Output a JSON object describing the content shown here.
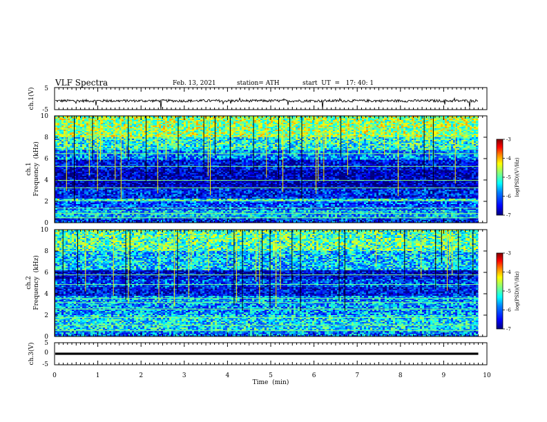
{
  "header": {
    "title": "VLF Spectra",
    "date": "Feb. 13, 2021",
    "station": "station= ATH",
    "start": "start  UT  =   17: 40: 1"
  },
  "colors": {
    "spectrogram_scale": [
      "#00007f",
      "#0000ff",
      "#0080ff",
      "#00ffff",
      "#80ff80",
      "#ffff00",
      "#ff8000",
      "#ff0000",
      "#7f0000"
    ],
    "trace": "#000000"
  },
  "chart_data": [
    {
      "type": "line",
      "panel": "ch1-waveform",
      "ylabel": "ch.1(V)",
      "ylim": [
        -5,
        5
      ],
      "yticks": [
        "5",
        "-5"
      ],
      "x_range_min": [
        0,
        9.8
      ],
      "baseline_V": -1,
      "noise_amplitude_V": 0.6,
      "spike_depth_V": -4
    },
    {
      "type": "heatmap",
      "panel": "ch1-spectrogram",
      "ylabel": "ch.1\nFrequency  (kHz)",
      "ylim": [
        0,
        10
      ],
      "yticks": [
        "0",
        "2",
        "4",
        "6",
        "8",
        "10"
      ],
      "x_range_min": [
        0,
        9.8
      ],
      "colorbar": {
        "label": "log(PSD)(V²/Hz)",
        "ticks": [
          "-3",
          "-4",
          "-5",
          "-6",
          "-7"
        ],
        "range": [
          -7,
          -3
        ]
      },
      "bands": [
        {
          "f": [
            0,
            0.4
          ],
          "v": -6.2
        },
        {
          "f": [
            0.4,
            1.2
          ],
          "v": -5.6
        },
        {
          "f": [
            1.2,
            2.0
          ],
          "v": -6.1
        },
        {
          "f": [
            2.0,
            2.25
          ],
          "v": -5.2
        },
        {
          "f": [
            2.25,
            3.2
          ],
          "v": -6.3
        },
        {
          "f": [
            3.2,
            4.9
          ],
          "v": -6.8
        },
        {
          "f": [
            4.9,
            5.9
          ],
          "v": -6.5
        },
        {
          "f": [
            5.9,
            6.8
          ],
          "v": -5.8
        },
        {
          "f": [
            6.8,
            8.0
          ],
          "v": -5.2
        },
        {
          "f": [
            8.0,
            10.0
          ],
          "v": -4.7
        }
      ],
      "lines_kHz": [
        0.5,
        0.9,
        1.4,
        2.1,
        3.3,
        4.0,
        5.3,
        6.5
      ]
    },
    {
      "type": "heatmap",
      "panel": "ch2-spectrogram",
      "ylabel": "ch.2\nFrequency  (kHz)",
      "ylim": [
        0,
        10
      ],
      "yticks": [
        "0",
        "2",
        "4",
        "6",
        "8",
        "10"
      ],
      "x_range_min": [
        0,
        9.8
      ],
      "colorbar": {
        "label": "log(PSD)(V²/Hz)",
        "ticks": [
          "-3",
          "-4",
          "-5",
          "-6",
          "-7"
        ],
        "range": [
          -7,
          -3
        ]
      },
      "bands": [
        {
          "f": [
            0,
            0.5
          ],
          "v": -5.8
        },
        {
          "f": [
            0.5,
            2.0
          ],
          "v": -5.4
        },
        {
          "f": [
            2.0,
            3.8
          ],
          "v": -5.7
        },
        {
          "f": [
            3.8,
            4.6
          ],
          "v": -6.4
        },
        {
          "f": [
            4.6,
            5.4
          ],
          "v": -6.1
        },
        {
          "f": [
            5.4,
            6.2
          ],
          "v": -6.6
        },
        {
          "f": [
            6.2,
            8.0
          ],
          "v": -5.5
        },
        {
          "f": [
            8.0,
            10.0
          ],
          "v": -5.0
        }
      ],
      "lines_kHz": [
        0.6,
        1.1,
        1.8,
        2.6,
        3.2,
        3.6,
        4.9,
        5.8
      ]
    },
    {
      "type": "line",
      "panel": "ch3-waveform",
      "ylabel": "ch.3(V)",
      "ylim": [
        -5,
        5
      ],
      "yticks": [
        "5",
        "0",
        "-5"
      ],
      "x_range_min": [
        0,
        9.8
      ],
      "baseline_V": 0,
      "band_halfwidth_V": 0.5
    }
  ],
  "xaxis": {
    "label": "Time  (min)",
    "ticks": [
      "0",
      "1",
      "2",
      "3",
      "4",
      "5",
      "6",
      "7",
      "8",
      "9",
      "10"
    ],
    "xlim": [
      0,
      10
    ]
  }
}
